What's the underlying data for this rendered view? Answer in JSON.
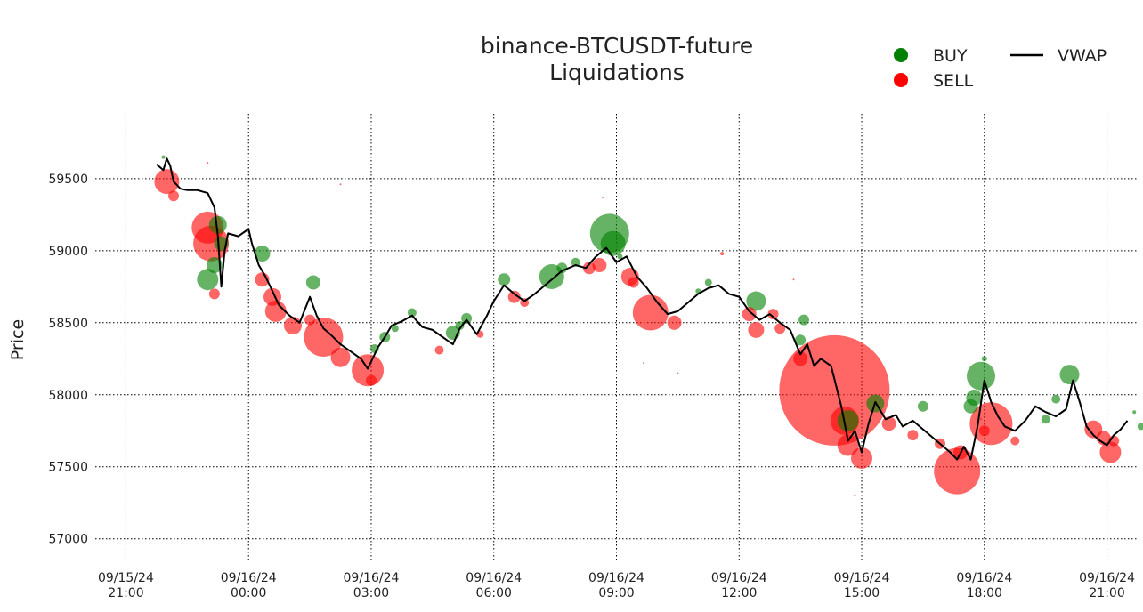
{
  "chart_data": {
    "type": "scatter",
    "title": "binance-BTCUSDT-future",
    "subtitle": "Liquidations",
    "xlabel": "",
    "ylabel": "Price",
    "ylim": [
      56850,
      59950
    ],
    "xlim": [
      "2024-09-15 20:15",
      "2024-09-16 21:45"
    ],
    "grid": true,
    "legend_position": "top-right",
    "legend": [
      {
        "label": "BUY",
        "kind": "marker",
        "color": "#008000"
      },
      {
        "label": "SELL",
        "kind": "marker",
        "color": "#ff0000"
      },
      {
        "label": "VWAP",
        "kind": "line",
        "color": "#000000"
      }
    ],
    "y_ticks": [
      57000,
      57500,
      58000,
      58500,
      59000,
      59500
    ],
    "x_ticks": [
      {
        "time": "2024-09-15 21:00",
        "date": "09/15/24",
        "clock": "21:00"
      },
      {
        "time": "2024-09-16 00:00",
        "date": "09/16/24",
        "clock": "00:00"
      },
      {
        "time": "2024-09-16 03:00",
        "date": "09/16/24",
        "clock": "03:00"
      },
      {
        "time": "2024-09-16 06:00",
        "date": "09/16/24",
        "clock": "06:00"
      },
      {
        "time": "2024-09-16 09:00",
        "date": "09/16/24",
        "clock": "09:00"
      },
      {
        "time": "2024-09-16 12:00",
        "date": "09/16/24",
        "clock": "12:00"
      },
      {
        "time": "2024-09-16 15:00",
        "date": "09/16/24",
        "clock": "15:00"
      },
      {
        "time": "2024-09-16 18:00",
        "date": "09/16/24",
        "clock": "18:00"
      },
      {
        "time": "2024-09-16 21:00",
        "date": "09/16/24",
        "clock": "21:00"
      }
    ],
    "vwap": {
      "name": "VWAP",
      "color": "#000000",
      "points": [
        [
          "2024-09-15 21:45",
          59600
        ],
        [
          "2024-09-15 21:55",
          59560
        ],
        [
          "2024-09-15 22:00",
          59640
        ],
        [
          "2024-09-15 22:05",
          59590
        ],
        [
          "2024-09-15 22:10",
          59480
        ],
        [
          "2024-09-15 22:20",
          59430
        ],
        [
          "2024-09-15 22:30",
          59420
        ],
        [
          "2024-09-15 22:45",
          59420
        ],
        [
          "2024-09-15 23:00",
          59400
        ],
        [
          "2024-09-15 23:10",
          59300
        ],
        [
          "2024-09-15 23:15",
          59100
        ],
        [
          "2024-09-15 23:20",
          58750
        ],
        [
          "2024-09-15 23:25",
          59000
        ],
        [
          "2024-09-15 23:30",
          59120
        ],
        [
          "2024-09-15 23:45",
          59100
        ],
        [
          "2024-09-16 00:00",
          59150
        ],
        [
          "2024-09-16 00:05",
          59050
        ],
        [
          "2024-09-16 00:15",
          58900
        ],
        [
          "2024-09-16 00:25",
          58820
        ],
        [
          "2024-09-16 00:35",
          58720
        ],
        [
          "2024-09-16 00:45",
          58620
        ],
        [
          "2024-09-16 01:00",
          58550
        ],
        [
          "2024-09-16 01:15",
          58500
        ],
        [
          "2024-09-16 01:30",
          58680
        ],
        [
          "2024-09-16 01:40",
          58550
        ],
        [
          "2024-09-16 01:50",
          58460
        ],
        [
          "2024-09-16 02:00",
          58420
        ],
        [
          "2024-09-16 02:15",
          58350
        ],
        [
          "2024-09-16 02:30",
          58300
        ],
        [
          "2024-09-16 02:45",
          58250
        ],
        [
          "2024-09-16 02:55",
          58180
        ],
        [
          "2024-09-16 03:00",
          58230
        ],
        [
          "2024-09-16 03:10",
          58330
        ],
        [
          "2024-09-16 03:20",
          58400
        ],
        [
          "2024-09-16 03:30",
          58480
        ],
        [
          "2024-09-16 03:45",
          58510
        ],
        [
          "2024-09-16 04:00",
          58550
        ],
        [
          "2024-09-16 04:15",
          58470
        ],
        [
          "2024-09-16 04:30",
          58450
        ],
        [
          "2024-09-16 04:45",
          58400
        ],
        [
          "2024-09-16 05:00",
          58350
        ],
        [
          "2024-09-16 05:10",
          58460
        ],
        [
          "2024-09-16 05:20",
          58520
        ],
        [
          "2024-09-16 05:35",
          58420
        ],
        [
          "2024-09-16 05:50",
          58550
        ],
        [
          "2024-09-16 06:00",
          58650
        ],
        [
          "2024-09-16 06:15",
          58760
        ],
        [
          "2024-09-16 06:30",
          58700
        ],
        [
          "2024-09-16 06:45",
          58650
        ],
        [
          "2024-09-16 07:00",
          58700
        ],
        [
          "2024-09-16 07:20",
          58780
        ],
        [
          "2024-09-16 07:40",
          58860
        ],
        [
          "2024-09-16 08:00",
          58900
        ],
        [
          "2024-09-16 08:15",
          58880
        ],
        [
          "2024-09-16 08:30",
          58960
        ],
        [
          "2024-09-16 08:45",
          59020
        ],
        [
          "2024-09-16 09:00",
          58920
        ],
        [
          "2024-09-16 09:15",
          58960
        ],
        [
          "2024-09-16 09:30",
          58820
        ],
        [
          "2024-09-16 09:45",
          58740
        ],
        [
          "2024-09-16 10:00",
          58640
        ],
        [
          "2024-09-16 10:15",
          58560
        ],
        [
          "2024-09-16 10:30",
          58580
        ],
        [
          "2024-09-16 10:45",
          58640
        ],
        [
          "2024-09-16 11:00",
          58700
        ],
        [
          "2024-09-16 11:15",
          58740
        ],
        [
          "2024-09-16 11:30",
          58760
        ],
        [
          "2024-09-16 11:45",
          58700
        ],
        [
          "2024-09-16 12:00",
          58680
        ],
        [
          "2024-09-16 12:15",
          58580
        ],
        [
          "2024-09-16 12:30",
          58520
        ],
        [
          "2024-09-16 12:45",
          58560
        ],
        [
          "2024-09-16 13:00",
          58500
        ],
        [
          "2024-09-16 13:15",
          58450
        ],
        [
          "2024-09-16 13:30",
          58280
        ],
        [
          "2024-09-16 13:40",
          58350
        ],
        [
          "2024-09-16 13:50",
          58200
        ],
        [
          "2024-09-16 14:00",
          58250
        ],
        [
          "2024-09-16 14:15",
          58200
        ],
        [
          "2024-09-16 14:30",
          57920
        ],
        [
          "2024-09-16 14:40",
          57680
        ],
        [
          "2024-09-16 14:50",
          57750
        ],
        [
          "2024-09-16 15:00",
          57600
        ],
        [
          "2024-09-16 15:10",
          57800
        ],
        [
          "2024-09-16 15:20",
          57950
        ],
        [
          "2024-09-16 15:35",
          57830
        ],
        [
          "2024-09-16 15:50",
          57860
        ],
        [
          "2024-09-16 16:00",
          57780
        ],
        [
          "2024-09-16 16:15",
          57820
        ],
        [
          "2024-09-16 16:30",
          57760
        ],
        [
          "2024-09-16 16:45",
          57700
        ],
        [
          "2024-09-16 17:00",
          57640
        ],
        [
          "2024-09-16 17:10",
          57600
        ],
        [
          "2024-09-16 17:20",
          57550
        ],
        [
          "2024-09-16 17:30",
          57640
        ],
        [
          "2024-09-16 17:40",
          57550
        ],
        [
          "2024-09-16 17:50",
          57780
        ],
        [
          "2024-09-16 18:00",
          58100
        ],
        [
          "2024-09-16 18:10",
          57950
        ],
        [
          "2024-09-16 18:20",
          57850
        ],
        [
          "2024-09-16 18:30",
          57780
        ],
        [
          "2024-09-16 18:45",
          57750
        ],
        [
          "2024-09-16 19:00",
          57820
        ],
        [
          "2024-09-16 19:15",
          57920
        ],
        [
          "2024-09-16 19:30",
          57880
        ],
        [
          "2024-09-16 19:45",
          57850
        ],
        [
          "2024-09-16 20:00",
          57900
        ],
        [
          "2024-09-16 20:10",
          58100
        ],
        [
          "2024-09-16 20:20",
          57950
        ],
        [
          "2024-09-16 20:30",
          57780
        ],
        [
          "2024-09-16 20:40",
          57720
        ],
        [
          "2024-09-16 20:50",
          57680
        ],
        [
          "2024-09-16 21:00",
          57650
        ],
        [
          "2024-09-16 21:10",
          57720
        ],
        [
          "2024-09-16 21:20",
          57760
        ],
        [
          "2024-09-16 21:30",
          57820
        ]
      ]
    },
    "series": [
      {
        "name": "BUY",
        "color": "#008000",
        "points": [
          [
            "2024-09-15 21:55",
            59650,
            2
          ],
          [
            "2024-09-15 23:00",
            58800,
            12
          ],
          [
            "2024-09-15 23:10",
            58900,
            9
          ],
          [
            "2024-09-15 23:15",
            59180,
            10
          ],
          [
            "2024-09-15 23:20",
            59050,
            8
          ],
          [
            "2024-09-16 00:20",
            58980,
            9
          ],
          [
            "2024-09-16 01:35",
            58780,
            8
          ],
          [
            "2024-09-16 03:05",
            58320,
            5
          ],
          [
            "2024-09-16 03:20",
            58400,
            6
          ],
          [
            "2024-09-16 03:35",
            58460,
            4
          ],
          [
            "2024-09-16 04:00",
            58570,
            5
          ],
          [
            "2024-09-16 05:00",
            58430,
            8
          ],
          [
            "2024-09-16 05:10",
            58480,
            5
          ],
          [
            "2024-09-16 05:20",
            58530,
            6
          ],
          [
            "2024-09-16 05:55",
            58100,
            1
          ],
          [
            "2024-09-16 06:15",
            58800,
            7
          ],
          [
            "2024-09-16 07:25",
            58820,
            14
          ],
          [
            "2024-09-16 07:40",
            58880,
            6
          ],
          [
            "2024-09-16 08:00",
            58920,
            5
          ],
          [
            "2024-09-16 08:50",
            59120,
            22
          ],
          [
            "2024-09-16 08:55",
            59050,
            14
          ],
          [
            "2024-09-16 09:05",
            58960,
            3
          ],
          [
            "2024-09-16 09:40",
            58220,
            1
          ],
          [
            "2024-09-16 10:30",
            58150,
            1
          ],
          [
            "2024-09-16 11:00",
            58720,
            3
          ],
          [
            "2024-09-16 11:15",
            58780,
            4
          ],
          [
            "2024-09-16 12:25",
            58650,
            11
          ],
          [
            "2024-09-16 13:30",
            58380,
            6
          ],
          [
            "2024-09-16 13:35",
            58520,
            6
          ],
          [
            "2024-09-16 14:40",
            57820,
            12
          ],
          [
            "2024-09-16 15:20",
            57940,
            10
          ],
          [
            "2024-09-16 16:30",
            57920,
            6
          ],
          [
            "2024-09-16 17:40",
            57920,
            8
          ],
          [
            "2024-09-16 17:45",
            57980,
            9
          ],
          [
            "2024-09-16 17:55",
            58130,
            16
          ],
          [
            "2024-09-16 18:00",
            58250,
            3
          ],
          [
            "2024-09-16 19:30",
            57830,
            5
          ],
          [
            "2024-09-16 19:45",
            57970,
            5
          ],
          [
            "2024-09-16 20:05",
            58140,
            11
          ],
          [
            "2024-09-16 21:40",
            57880,
            2
          ],
          [
            "2024-09-16 21:50",
            57780,
            4
          ]
        ]
      },
      {
        "name": "SELL",
        "color": "#ff0000",
        "points": [
          [
            "2024-09-15 22:00",
            59480,
            14
          ],
          [
            "2024-09-15 22:10",
            59380,
            6
          ],
          [
            "2024-09-15 23:00",
            59610,
            1
          ],
          [
            "2024-09-15 23:00",
            59160,
            18
          ],
          [
            "2024-09-15 23:05",
            59050,
            20
          ],
          [
            "2024-09-15 23:10",
            58700,
            6
          ],
          [
            "2024-09-16 00:20",
            58800,
            8
          ],
          [
            "2024-09-16 00:35",
            58680,
            10
          ],
          [
            "2024-09-16 00:40",
            58580,
            12
          ],
          [
            "2024-09-16 01:05",
            58480,
            10
          ],
          [
            "2024-09-16 01:30",
            58520,
            6
          ],
          [
            "2024-09-16 01:50",
            58400,
            22
          ],
          [
            "2024-09-16 02:15",
            58260,
            11
          ],
          [
            "2024-09-16 02:15",
            59460,
            1
          ],
          [
            "2024-09-16 02:55",
            58170,
            18
          ],
          [
            "2024-09-16 03:00",
            58100,
            6
          ],
          [
            "2024-09-16 04:40",
            58310,
            5
          ],
          [
            "2024-09-16 05:40",
            58420,
            4
          ],
          [
            "2024-09-16 06:30",
            58680,
            7
          ],
          [
            "2024-09-16 06:45",
            58640,
            5
          ],
          [
            "2024-09-16 08:20",
            58880,
            7
          ],
          [
            "2024-09-16 08:35",
            58900,
            8
          ],
          [
            "2024-09-16 08:40",
            59370,
            1
          ],
          [
            "2024-09-16 09:20",
            58820,
            10
          ],
          [
            "2024-09-16 09:25",
            58780,
            6
          ],
          [
            "2024-09-16 09:50",
            58570,
            20
          ],
          [
            "2024-09-16 10:25",
            58500,
            8
          ],
          [
            "2024-09-16 11:35",
            58980,
            2
          ],
          [
            "2024-09-16 12:15",
            58560,
            8
          ],
          [
            "2024-09-16 12:25",
            58450,
            9
          ],
          [
            "2024-09-16 12:50",
            58560,
            6
          ],
          [
            "2024-09-16 13:00",
            58460,
            6
          ],
          [
            "2024-09-16 13:20",
            58800,
            1
          ],
          [
            "2024-09-16 13:30",
            58250,
            8
          ],
          [
            "2024-09-16 14:20",
            58030,
            62
          ],
          [
            "2024-09-16 14:35",
            57820,
            16
          ],
          [
            "2024-09-16 14:40",
            57650,
            12
          ],
          [
            "2024-09-16 14:50",
            57300,
            1
          ],
          [
            "2024-09-16 15:00",
            57560,
            12
          ],
          [
            "2024-09-16 15:40",
            57800,
            8
          ],
          [
            "2024-09-16 16:15",
            57720,
            6
          ],
          [
            "2024-09-16 16:55",
            57660,
            6
          ],
          [
            "2024-09-16 17:20",
            57470,
            26
          ],
          [
            "2024-09-16 17:25",
            57600,
            8
          ],
          [
            "2024-09-16 17:55",
            57830,
            1
          ],
          [
            "2024-09-16 18:00",
            57750,
            6
          ],
          [
            "2024-09-16 18:10",
            57800,
            24
          ],
          [
            "2024-09-16 18:45",
            57680,
            5
          ],
          [
            "2024-09-16 20:40",
            57760,
            10
          ],
          [
            "2024-09-16 20:55",
            57700,
            8
          ],
          [
            "2024-09-16 21:05",
            57600,
            12
          ],
          [
            "2024-09-16 21:10",
            57680,
            6
          ]
        ]
      }
    ]
  }
}
